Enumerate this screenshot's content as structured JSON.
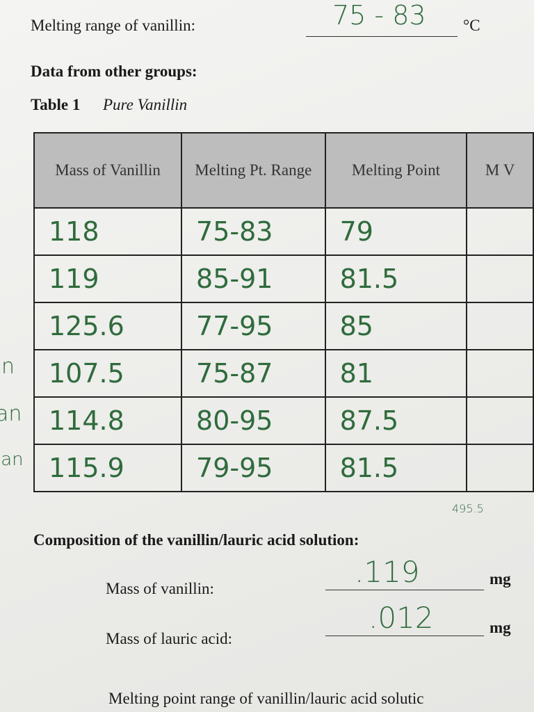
{
  "header": {
    "melting_range_label": "Melting range of vanillin:",
    "melting_range_value": "75 - 83",
    "melting_range_unit": "°C",
    "other_groups": "Data from other groups:",
    "table_number": "Table 1",
    "table_title": "Pure Vanillin"
  },
  "table": {
    "columns": [
      "Mass of Vanillin",
      "Melting Pt. Range",
      "Melting Point",
      "M V"
    ],
    "rows": [
      [
        "118",
        "75-83",
        "79"
      ],
      [
        "119",
        "85-91",
        "81.5"
      ],
      [
        "125.6",
        "77-95",
        "85"
      ],
      [
        "107.5",
        "75-87",
        "81"
      ],
      [
        "114.8",
        "80-95",
        "87.5"
      ],
      [
        "115.9",
        "79-95",
        "81.5"
      ]
    ],
    "note": "495.5"
  },
  "margin": [
    "n",
    "an",
    "lan"
  ],
  "composition": {
    "title": "Composition of the vanillin/lauric acid solution:",
    "mass_vanillin_label": "Mass of vanillin:",
    "mass_vanillin_value": ".119",
    "mass_vanillin_unit": "mg",
    "mass_lauric_label": "Mass of lauric acid:",
    "mass_lauric_value": ".012",
    "mass_lauric_unit": "mg"
  },
  "footer": {
    "melting_point_range_label": "Melting point range of vanillin/lauric acid solutic"
  }
}
